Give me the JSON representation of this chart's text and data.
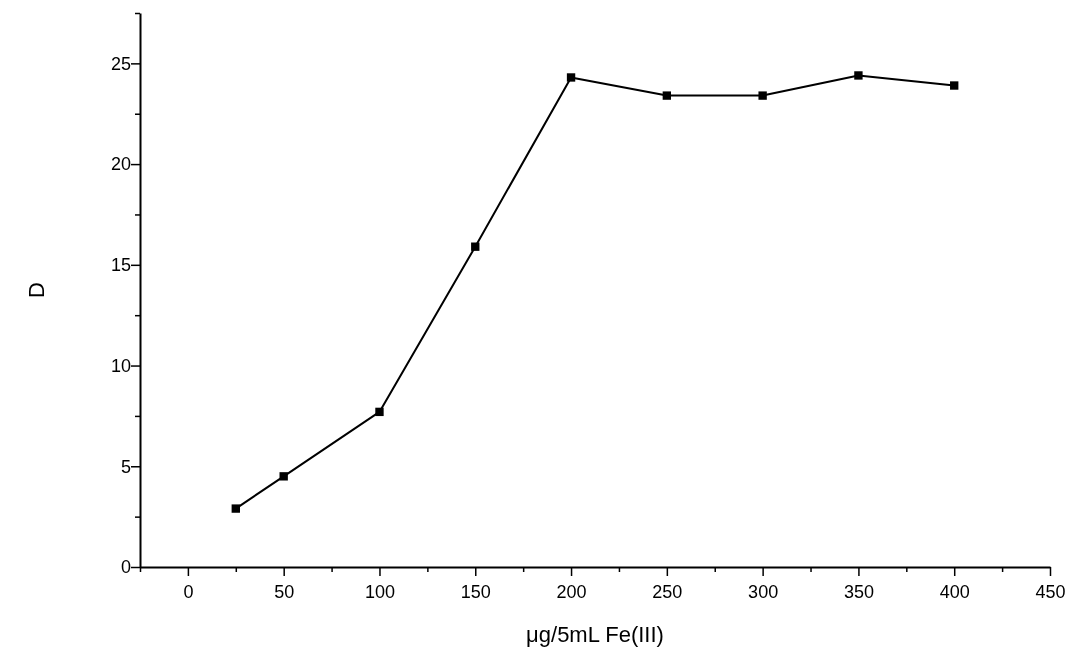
{
  "chart_data": {
    "type": "line",
    "xlabel": "μg/5mL Fe(III)",
    "ylabel": "D",
    "x": [
      25,
      50,
      100,
      150,
      200,
      250,
      300,
      350,
      400
    ],
    "series": [
      {
        "color": "#000000",
        "values": [
          2.9,
          4.5,
          7.7,
          15.9,
          24.3,
          23.4,
          23.4,
          24.4,
          23.9
        ]
      }
    ],
    "xlim": [
      -25,
      450
    ],
    "ylim": [
      0,
      27.5
    ],
    "xticks": [
      {
        "value": -25,
        "label": null
      },
      0,
      {
        "value": 25,
        "label": null
      },
      50,
      {
        "value": 75,
        "label": null
      },
      100,
      {
        "value": 125,
        "label": null
      },
      150,
      {
        "value": 175,
        "label": null
      },
      200,
      {
        "value": 225,
        "label": null
      },
      250,
      {
        "value": 275,
        "label": null
      },
      300,
      {
        "value": 325,
        "label": null
      },
      350,
      {
        "value": 375,
        "label": null
      },
      400,
      {
        "value": 425,
        "label": null
      },
      450
    ],
    "yticks": [
      0,
      {
        "value": 2.5,
        "label": null
      },
      5,
      {
        "value": 7.5,
        "label": null
      },
      10,
      {
        "value": 12.5,
        "label": null
      },
      15,
      {
        "value": 17.5,
        "label": null
      },
      20,
      {
        "value": 22.5,
        "label": null
      },
      25,
      {
        "value": 27.5,
        "label": null
      }
    ],
    "marker": "square",
    "line_style": "solid"
  }
}
